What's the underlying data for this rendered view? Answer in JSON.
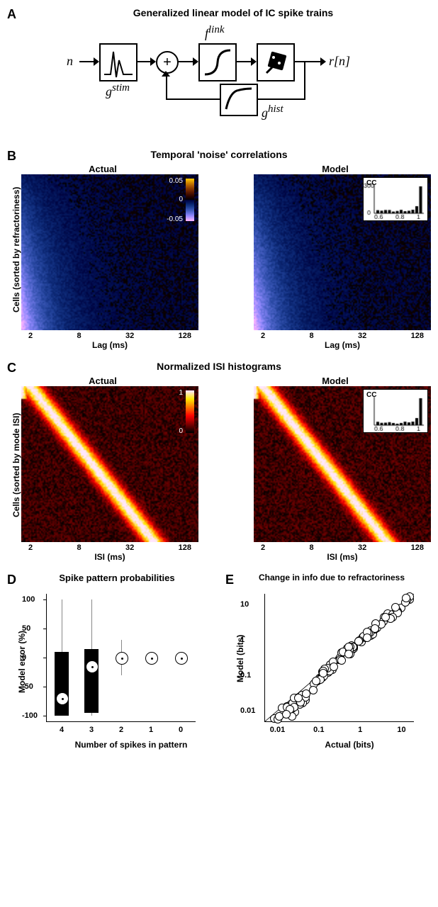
{
  "panelA": {
    "label": "A",
    "title": "Generalized linear model of IC spike trains",
    "input_symbol": "n",
    "stim_filter": "g",
    "stim_filter_sup": "stim",
    "link_fn": "f",
    "link_fn_sup": "link",
    "hist_filter": "g",
    "hist_filter_sup": "hist",
    "output": "r[n]"
  },
  "panelB": {
    "label": "B",
    "title": "Temporal 'noise' correlations",
    "left_title": "Actual",
    "right_title": "Model",
    "ylab": "Cells (sorted by refractoriness)",
    "xlab": "Lag (ms)",
    "ticks": [
      "2",
      "8",
      "32",
      "128"
    ],
    "cbar_min": -0.05,
    "cbar_mid": 0,
    "cbar_max": 0.05,
    "inset_title": "CC",
    "inset_xticks": [
      "0.6",
      "0.8",
      "1"
    ],
    "inset_yticks": [
      "0",
      "300"
    ],
    "colors": {
      "low": "#ffffff",
      "mid_low": "#5aa0ff",
      "zero": "#000000",
      "mid_high": "#ff6a00",
      "high": "#ffe040"
    }
  },
  "panelC": {
    "label": "C",
    "title": "Normalized ISI histograms",
    "left_title": "Actual",
    "right_title": "Model",
    "ylab": "Cells (sorted by mode ISI)",
    "xlab": "ISI (ms)",
    "ticks": [
      "2",
      "8",
      "32",
      "128"
    ],
    "cbar_min": 0,
    "cbar_max": 1,
    "inset_title": "CC",
    "inset_xticks": [
      "0.6",
      "0.8",
      "1"
    ],
    "colors": {
      "low": "#000000",
      "mid": "#c02000",
      "high": "#ffe060",
      "peak": "#ffffff"
    }
  },
  "panelD": {
    "label": "D",
    "title": "Spike pattern probabilities",
    "ylab": "Model error (%)",
    "xlab": "Number of spikes in pattern",
    "yticks": [
      -100,
      -50,
      0,
      50,
      100
    ],
    "xticks": [
      "4",
      "3",
      "2",
      "1",
      "0"
    ],
    "boxes": [
      {
        "x": "4",
        "q1": -100,
        "q3": 10,
        "med": -70,
        "wlo": -100,
        "whi": 100
      },
      {
        "x": "3",
        "q1": -95,
        "q3": 15,
        "med": -15,
        "wlo": -100,
        "whi": 100
      },
      {
        "x": "2",
        "q1": -5,
        "q3": 5,
        "med": 0,
        "wlo": -30,
        "whi": 30
      },
      {
        "x": "1",
        "q1": -2,
        "q3": 2,
        "med": 0,
        "wlo": -10,
        "whi": 10
      },
      {
        "x": "0",
        "q1": -1,
        "q3": 1,
        "med": 0,
        "wlo": -3,
        "whi": 3
      }
    ],
    "box_color": "#000000",
    "marker_stroke": "#000000"
  },
  "panelE": {
    "label": "E",
    "title": "Change in info due to refractoriness",
    "ylab": "Model (bits)",
    "xlab": "Actual (bits)",
    "ticks": [
      "0.01",
      "0.1",
      "1",
      "10"
    ],
    "log_min": -2.3,
    "log_max": 1.3,
    "n_points": 110,
    "marker_stroke": "#000000",
    "marker_fill": "#ffffff"
  },
  "styling": {
    "font_family": "Arial",
    "title_fontsize": 14,
    "label_fontsize": 12,
    "tick_fontsize": 11,
    "background": "#ffffff"
  }
}
